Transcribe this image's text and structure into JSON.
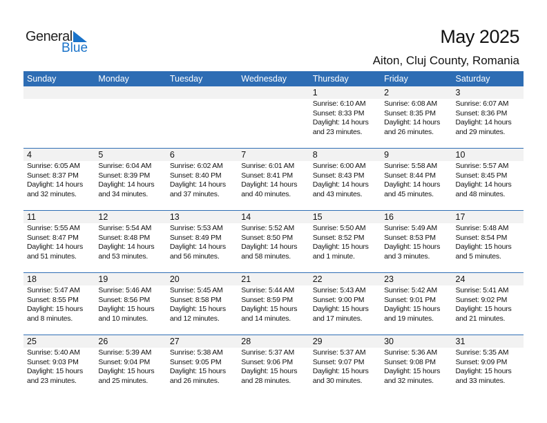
{
  "brand": {
    "word1": "General",
    "word2": "Blue",
    "accent": "#1a73c9"
  },
  "header": {
    "title": "May 2025",
    "location": "Aiton, Cluj County, Romania"
  },
  "colors": {
    "header_bg": "#2e6db4",
    "band_bg": "#f2f2f2"
  },
  "weekdays": [
    "Sunday",
    "Monday",
    "Tuesday",
    "Wednesday",
    "Thursday",
    "Friday",
    "Saturday"
  ],
  "weeks": [
    [
      null,
      null,
      null,
      null,
      {
        "day": "1",
        "sunrise": "Sunrise: 6:10 AM",
        "sunset": "Sunset: 8:33 PM",
        "daylight1": "Daylight: 14 hours",
        "daylight2": "and 23 minutes."
      },
      {
        "day": "2",
        "sunrise": "Sunrise: 6:08 AM",
        "sunset": "Sunset: 8:35 PM",
        "daylight1": "Daylight: 14 hours",
        "daylight2": "and 26 minutes."
      },
      {
        "day": "3",
        "sunrise": "Sunrise: 6:07 AM",
        "sunset": "Sunset: 8:36 PM",
        "daylight1": "Daylight: 14 hours",
        "daylight2": "and 29 minutes."
      }
    ],
    [
      {
        "day": "4",
        "sunrise": "Sunrise: 6:05 AM",
        "sunset": "Sunset: 8:37 PM",
        "daylight1": "Daylight: 14 hours",
        "daylight2": "and 32 minutes."
      },
      {
        "day": "5",
        "sunrise": "Sunrise: 6:04 AM",
        "sunset": "Sunset: 8:39 PM",
        "daylight1": "Daylight: 14 hours",
        "daylight2": "and 34 minutes."
      },
      {
        "day": "6",
        "sunrise": "Sunrise: 6:02 AM",
        "sunset": "Sunset: 8:40 PM",
        "daylight1": "Daylight: 14 hours",
        "daylight2": "and 37 minutes."
      },
      {
        "day": "7",
        "sunrise": "Sunrise: 6:01 AM",
        "sunset": "Sunset: 8:41 PM",
        "daylight1": "Daylight: 14 hours",
        "daylight2": "and 40 minutes."
      },
      {
        "day": "8",
        "sunrise": "Sunrise: 6:00 AM",
        "sunset": "Sunset: 8:43 PM",
        "daylight1": "Daylight: 14 hours",
        "daylight2": "and 43 minutes."
      },
      {
        "day": "9",
        "sunrise": "Sunrise: 5:58 AM",
        "sunset": "Sunset: 8:44 PM",
        "daylight1": "Daylight: 14 hours",
        "daylight2": "and 45 minutes."
      },
      {
        "day": "10",
        "sunrise": "Sunrise: 5:57 AM",
        "sunset": "Sunset: 8:45 PM",
        "daylight1": "Daylight: 14 hours",
        "daylight2": "and 48 minutes."
      }
    ],
    [
      {
        "day": "11",
        "sunrise": "Sunrise: 5:55 AM",
        "sunset": "Sunset: 8:47 PM",
        "daylight1": "Daylight: 14 hours",
        "daylight2": "and 51 minutes."
      },
      {
        "day": "12",
        "sunrise": "Sunrise: 5:54 AM",
        "sunset": "Sunset: 8:48 PM",
        "daylight1": "Daylight: 14 hours",
        "daylight2": "and 53 minutes."
      },
      {
        "day": "13",
        "sunrise": "Sunrise: 5:53 AM",
        "sunset": "Sunset: 8:49 PM",
        "daylight1": "Daylight: 14 hours",
        "daylight2": "and 56 minutes."
      },
      {
        "day": "14",
        "sunrise": "Sunrise: 5:52 AM",
        "sunset": "Sunset: 8:50 PM",
        "daylight1": "Daylight: 14 hours",
        "daylight2": "and 58 minutes."
      },
      {
        "day": "15",
        "sunrise": "Sunrise: 5:50 AM",
        "sunset": "Sunset: 8:52 PM",
        "daylight1": "Daylight: 15 hours",
        "daylight2": "and 1 minute."
      },
      {
        "day": "16",
        "sunrise": "Sunrise: 5:49 AM",
        "sunset": "Sunset: 8:53 PM",
        "daylight1": "Daylight: 15 hours",
        "daylight2": "and 3 minutes."
      },
      {
        "day": "17",
        "sunrise": "Sunrise: 5:48 AM",
        "sunset": "Sunset: 8:54 PM",
        "daylight1": "Daylight: 15 hours",
        "daylight2": "and 5 minutes."
      }
    ],
    [
      {
        "day": "18",
        "sunrise": "Sunrise: 5:47 AM",
        "sunset": "Sunset: 8:55 PM",
        "daylight1": "Daylight: 15 hours",
        "daylight2": "and 8 minutes."
      },
      {
        "day": "19",
        "sunrise": "Sunrise: 5:46 AM",
        "sunset": "Sunset: 8:56 PM",
        "daylight1": "Daylight: 15 hours",
        "daylight2": "and 10 minutes."
      },
      {
        "day": "20",
        "sunrise": "Sunrise: 5:45 AM",
        "sunset": "Sunset: 8:58 PM",
        "daylight1": "Daylight: 15 hours",
        "daylight2": "and 12 minutes."
      },
      {
        "day": "21",
        "sunrise": "Sunrise: 5:44 AM",
        "sunset": "Sunset: 8:59 PM",
        "daylight1": "Daylight: 15 hours",
        "daylight2": "and 14 minutes."
      },
      {
        "day": "22",
        "sunrise": "Sunrise: 5:43 AM",
        "sunset": "Sunset: 9:00 PM",
        "daylight1": "Daylight: 15 hours",
        "daylight2": "and 17 minutes."
      },
      {
        "day": "23",
        "sunrise": "Sunrise: 5:42 AM",
        "sunset": "Sunset: 9:01 PM",
        "daylight1": "Daylight: 15 hours",
        "daylight2": "and 19 minutes."
      },
      {
        "day": "24",
        "sunrise": "Sunrise: 5:41 AM",
        "sunset": "Sunset: 9:02 PM",
        "daylight1": "Daylight: 15 hours",
        "daylight2": "and 21 minutes."
      }
    ],
    [
      {
        "day": "25",
        "sunrise": "Sunrise: 5:40 AM",
        "sunset": "Sunset: 9:03 PM",
        "daylight1": "Daylight: 15 hours",
        "daylight2": "and 23 minutes."
      },
      {
        "day": "26",
        "sunrise": "Sunrise: 5:39 AM",
        "sunset": "Sunset: 9:04 PM",
        "daylight1": "Daylight: 15 hours",
        "daylight2": "and 25 minutes."
      },
      {
        "day": "27",
        "sunrise": "Sunrise: 5:38 AM",
        "sunset": "Sunset: 9:05 PM",
        "daylight1": "Daylight: 15 hours",
        "daylight2": "and 26 minutes."
      },
      {
        "day": "28",
        "sunrise": "Sunrise: 5:37 AM",
        "sunset": "Sunset: 9:06 PM",
        "daylight1": "Daylight: 15 hours",
        "daylight2": "and 28 minutes."
      },
      {
        "day": "29",
        "sunrise": "Sunrise: 5:37 AM",
        "sunset": "Sunset: 9:07 PM",
        "daylight1": "Daylight: 15 hours",
        "daylight2": "and 30 minutes."
      },
      {
        "day": "30",
        "sunrise": "Sunrise: 5:36 AM",
        "sunset": "Sunset: 9:08 PM",
        "daylight1": "Daylight: 15 hours",
        "daylight2": "and 32 minutes."
      },
      {
        "day": "31",
        "sunrise": "Sunrise: 5:35 AM",
        "sunset": "Sunset: 9:09 PM",
        "daylight1": "Daylight: 15 hours",
        "daylight2": "and 33 minutes."
      }
    ]
  ]
}
